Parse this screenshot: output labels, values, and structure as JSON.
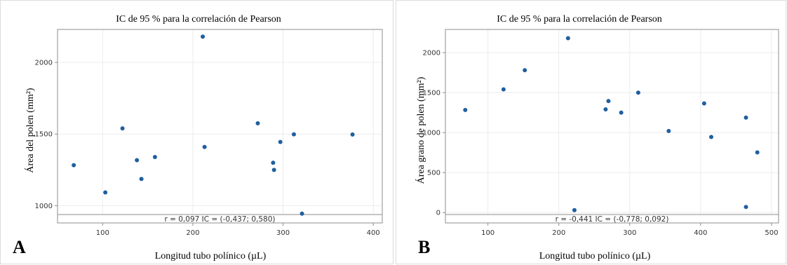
{
  "chart_data": [
    {
      "type": "scatter",
      "panel_label": "A",
      "title": "IC de 95 % para la correlación de Pearson",
      "xlabel": "Longitud tubo polínico (µL)",
      "ylabel": "Área del polen (mm²)",
      "xlim": [
        50,
        410
      ],
      "ylim": [
        880,
        2230
      ],
      "xticks": [
        100,
        200,
        300,
        400
      ],
      "yticks": [
        1000,
        1500,
        2000
      ],
      "grid": true,
      "point_color": "#1f5fa0",
      "annotation": "r = 0,097  IC = (-0,437; 0,580)",
      "points": [
        {
          "x": 68,
          "y": 1283
        },
        {
          "x": 103,
          "y": 1093
        },
        {
          "x": 122,
          "y": 1540
        },
        {
          "x": 138,
          "y": 1318
        },
        {
          "x": 143,
          "y": 1187
        },
        {
          "x": 158,
          "y": 1340
        },
        {
          "x": 211,
          "y": 2180
        },
        {
          "x": 213,
          "y": 1410
        },
        {
          "x": 272,
          "y": 1575
        },
        {
          "x": 289,
          "y": 1300
        },
        {
          "x": 290,
          "y": 1250
        },
        {
          "x": 297,
          "y": 1445
        },
        {
          "x": 312,
          "y": 1498
        },
        {
          "x": 321,
          "y": 945
        },
        {
          "x": 377,
          "y": 1497
        }
      ]
    },
    {
      "type": "scatter",
      "panel_label": "B",
      "title": "IC de 95 % para la correlación de Pearson",
      "xlabel": "Longitud tubo polínico (µL)",
      "ylabel": "Área grano de polen (mm²)",
      "xlim": [
        40,
        510
      ],
      "ylim": [
        -130,
        2290
      ],
      "xticks": [
        100,
        200,
        300,
        400,
        500
      ],
      "yticks": [
        0,
        500,
        1000,
        1500,
        2000
      ],
      "grid": true,
      "point_color": "#1f5fa0",
      "annotation": "r = -0,441  IC = (-0,778; 0,092)",
      "points": [
        {
          "x": 68,
          "y": 1283
        },
        {
          "x": 122,
          "y": 1540
        },
        {
          "x": 152,
          "y": 1780
        },
        {
          "x": 213,
          "y": 2180
        },
        {
          "x": 222,
          "y": 30
        },
        {
          "x": 266,
          "y": 1290
        },
        {
          "x": 270,
          "y": 1395
        },
        {
          "x": 288,
          "y": 1250
        },
        {
          "x": 312,
          "y": 1500
        },
        {
          "x": 355,
          "y": 1020
        },
        {
          "x": 405,
          "y": 1365
        },
        {
          "x": 415,
          "y": 945
        },
        {
          "x": 464,
          "y": 1187
        },
        {
          "x": 464,
          "y": 70
        },
        {
          "x": 480,
          "y": 752
        }
      ]
    }
  ]
}
